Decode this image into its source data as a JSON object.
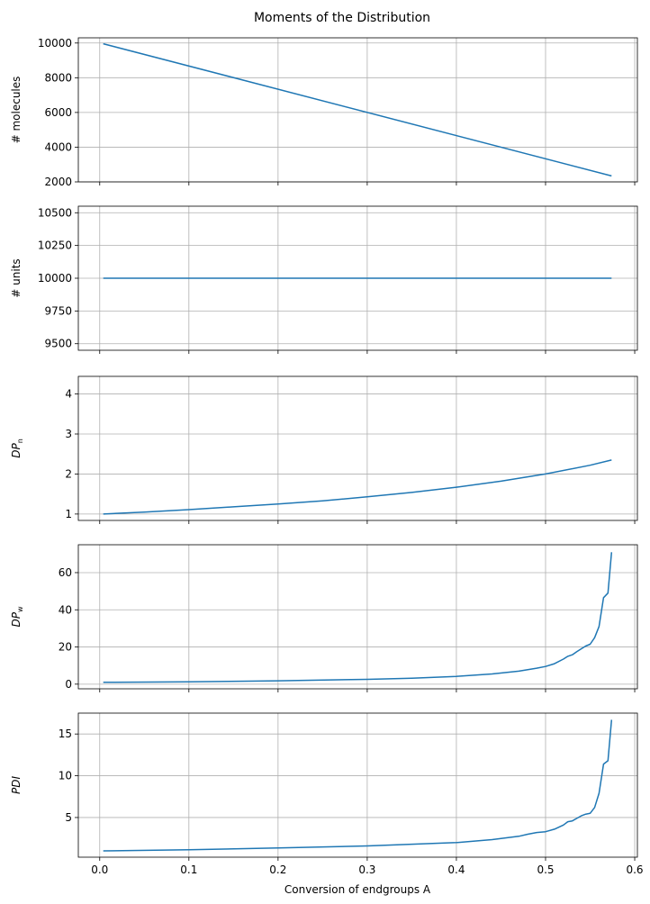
{
  "chart_data": {
    "type": "line",
    "title": "Moments of the Distribution",
    "xlabel": "Conversion of endgroups A",
    "xlim": [
      -0.024,
      0.603
    ],
    "xticks": [
      0.0,
      0.1,
      0.2,
      0.3,
      0.4,
      0.5,
      0.6
    ],
    "xtick_labels": [
      "0.0",
      "0.1",
      "0.2",
      "0.3",
      "0.4",
      "0.5",
      "0.6"
    ],
    "grid": true,
    "color": "#1f77b4",
    "panels": [
      {
        "ylabel": "# molecules",
        "ylabel_sub": "",
        "ylabel_italic": false,
        "ylim": [
          2000,
          10300
        ],
        "yticks": [
          2000,
          4000,
          6000,
          8000,
          10000
        ],
        "ytick_labels": [
          "2000",
          "4000",
          "6000",
          "8000",
          "10000"
        ],
        "x": [
          0.004,
          0.574
        ],
        "y": [
          9960,
          2340
        ]
      },
      {
        "ylabel": "# units",
        "ylabel_sub": "",
        "ylabel_italic": false,
        "ylim": [
          9450,
          10550
        ],
        "yticks": [
          9500,
          9750,
          10000,
          10250,
          10500
        ],
        "ytick_labels": [
          "9500",
          "9750",
          "10000",
          "10250",
          "10500"
        ],
        "x": [
          0.004,
          0.574
        ],
        "y": [
          10000,
          10000
        ]
      },
      {
        "ylabel": "DP",
        "ylabel_sub": "n",
        "ylabel_italic": true,
        "ylim": [
          0.84,
          4.44
        ],
        "yticks": [
          1,
          2,
          3,
          4
        ],
        "ytick_labels": [
          "1",
          "2",
          "3",
          "4"
        ],
        "x": [
          0.004,
          0.05,
          0.1,
          0.15,
          0.2,
          0.25,
          0.3,
          0.35,
          0.4,
          0.45,
          0.5,
          0.55,
          0.574
        ],
        "y": [
          1.0,
          1.05,
          1.11,
          1.18,
          1.25,
          1.33,
          1.43,
          1.54,
          1.67,
          1.82,
          2.0,
          2.22,
          2.35
        ]
      },
      {
        "ylabel": "DP",
        "ylabel_sub": "w",
        "ylabel_italic": true,
        "ylim": [
          -2.5,
          75
        ],
        "yticks": [
          0,
          20,
          40,
          60
        ],
        "ytick_labels": [
          "0",
          "20",
          "40",
          "60"
        ],
        "x": [
          0.004,
          0.1,
          0.2,
          0.3,
          0.35,
          0.4,
          0.44,
          0.47,
          0.48,
          0.49,
          0.5,
          0.51,
          0.52,
          0.525,
          0.53,
          0.535,
          0.54,
          0.545,
          0.55,
          0.555,
          0.56,
          0.565,
          0.57,
          0.574
        ],
        "y": [
          1.0,
          1.3,
          1.8,
          2.6,
          3.2,
          4.2,
          5.5,
          7.0,
          7.8,
          8.6,
          9.5,
          11.0,
          13.5,
          15.0,
          15.8,
          17.5,
          19.0,
          20.5,
          21.5,
          25.0,
          31.0,
          46.5,
          49.0,
          71.0
        ]
      },
      {
        "ylabel": "PDI",
        "ylabel_sub": "",
        "ylabel_italic": true,
        "ylim": [
          0.25,
          17.5
        ],
        "yticks": [
          5,
          10,
          15
        ],
        "ytick_labels": [
          "5",
          "10",
          "15"
        ],
        "x": [
          0.004,
          0.1,
          0.2,
          0.3,
          0.35,
          0.4,
          0.44,
          0.47,
          0.48,
          0.49,
          0.5,
          0.51,
          0.52,
          0.525,
          0.53,
          0.535,
          0.54,
          0.545,
          0.55,
          0.555,
          0.56,
          0.565,
          0.57,
          0.574
        ],
        "y": [
          1.0,
          1.15,
          1.35,
          1.6,
          1.8,
          2.0,
          2.35,
          2.75,
          3.0,
          3.2,
          3.3,
          3.6,
          4.1,
          4.5,
          4.6,
          4.9,
          5.2,
          5.4,
          5.5,
          6.2,
          7.9,
          11.4,
          11.8,
          16.7
        ]
      }
    ]
  }
}
